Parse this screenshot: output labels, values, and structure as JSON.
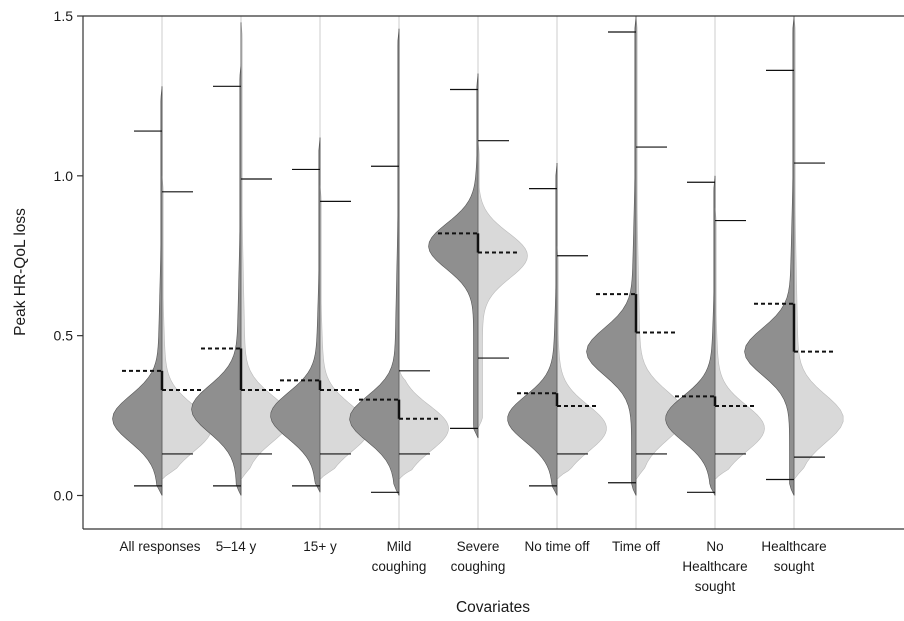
{
  "chart_data": {
    "type": "split-violin",
    "xlabel": "Covariates",
    "ylabel": "Peak HR-QoL loss",
    "ylim": [
      -0.1,
      1.5
    ],
    "yticks": [
      "0.0",
      "0.5",
      "1.0",
      "1.5"
    ],
    "ytick_values": [
      0.0,
      0.5,
      1.0,
      1.5
    ],
    "colors": {
      "left_half": "#8f8f8f",
      "right_half": "#d9d9d9",
      "median_line": "#111111",
      "center_line": "#cccccc"
    },
    "categories": [
      {
        "label_lines": [
          "All responses"
        ],
        "left": {
          "median": 0.39,
          "min": 0.03,
          "max": 1.14,
          "top": 1.28,
          "bottom": 0.0,
          "mode": 0.24
        },
        "right": {
          "median": 0.33,
          "min": 0.13,
          "max": 0.95,
          "top": 1.0,
          "bottom": 0.05,
          "mode": 0.21
        }
      },
      {
        "label_lines": [
          "5–14 y"
        ],
        "left": {
          "median": 0.46,
          "min": 0.03,
          "max": 1.28,
          "top": 1.35,
          "bottom": 0.0,
          "mode": 0.27
        },
        "right": {
          "median": 0.33,
          "min": 0.13,
          "max": 0.99,
          "top": 1.48,
          "bottom": 0.05,
          "mode": 0.24
        }
      },
      {
        "label_lines": [
          "15+ y"
        ],
        "left": {
          "median": 0.36,
          "min": 0.03,
          "max": 1.02,
          "top": 1.12,
          "bottom": 0.01,
          "mode": 0.25
        },
        "right": {
          "median": 0.33,
          "min": 0.13,
          "max": 0.92,
          "top": 0.97,
          "bottom": 0.05,
          "mode": 0.21
        }
      },
      {
        "label_lines": [
          "Mild",
          "coughing"
        ],
        "left": {
          "median": 0.3,
          "min": 0.01,
          "max": 1.03,
          "top": 1.46,
          "bottom": 0.0,
          "mode": 0.24
        },
        "right": {
          "median": 0.24,
          "min": 0.13,
          "max": 0.39,
          "top": 0.4,
          "bottom": 0.05,
          "mode": 0.21
        }
      },
      {
        "label_lines": [
          "Severe",
          "coughing"
        ],
        "left": {
          "median": 0.82,
          "min": 0.21,
          "max": 1.27,
          "top": 1.32,
          "bottom": 0.18,
          "mode": 0.78
        },
        "right": {
          "median": 0.76,
          "min": 0.43,
          "max": 1.11,
          "top": 1.11,
          "bottom": 0.21,
          "mode": 0.75
        }
      },
      {
        "label_lines": [
          "No time off"
        ],
        "left": {
          "median": 0.32,
          "min": 0.03,
          "max": 0.96,
          "top": 1.04,
          "bottom": 0.0,
          "mode": 0.24
        },
        "right": {
          "median": 0.28,
          "min": 0.13,
          "max": 0.75,
          "top": 0.78,
          "bottom": 0.05,
          "mode": 0.21
        }
      },
      {
        "label_lines": [
          "Time off"
        ],
        "left": {
          "median": 0.63,
          "min": 0.04,
          "max": 1.45,
          "top": 1.5,
          "bottom": 0.0,
          "mode": 0.45
        },
        "right": {
          "median": 0.51,
          "min": 0.13,
          "max": 1.09,
          "top": 1.5,
          "bottom": 0.05,
          "mode": 0.25
        }
      },
      {
        "label_lines": [
          "No",
          "Healthcare",
          "sought"
        ],
        "left": {
          "median": 0.31,
          "min": 0.01,
          "max": 0.98,
          "top": 1.0,
          "bottom": 0.0,
          "mode": 0.24
        },
        "right": {
          "median": 0.28,
          "min": 0.13,
          "max": 0.86,
          "top": 0.9,
          "bottom": 0.05,
          "mode": 0.21
        }
      },
      {
        "label_lines": [
          "Healthcare",
          "sought"
        ],
        "left": {
          "median": 0.6,
          "min": 0.05,
          "max": 1.33,
          "top": 1.5,
          "bottom": 0.0,
          "mode": 0.45
        },
        "right": {
          "median": 0.45,
          "min": 0.12,
          "max": 1.04,
          "top": 1.5,
          "bottom": 0.05,
          "mode": 0.24
        }
      }
    ]
  }
}
